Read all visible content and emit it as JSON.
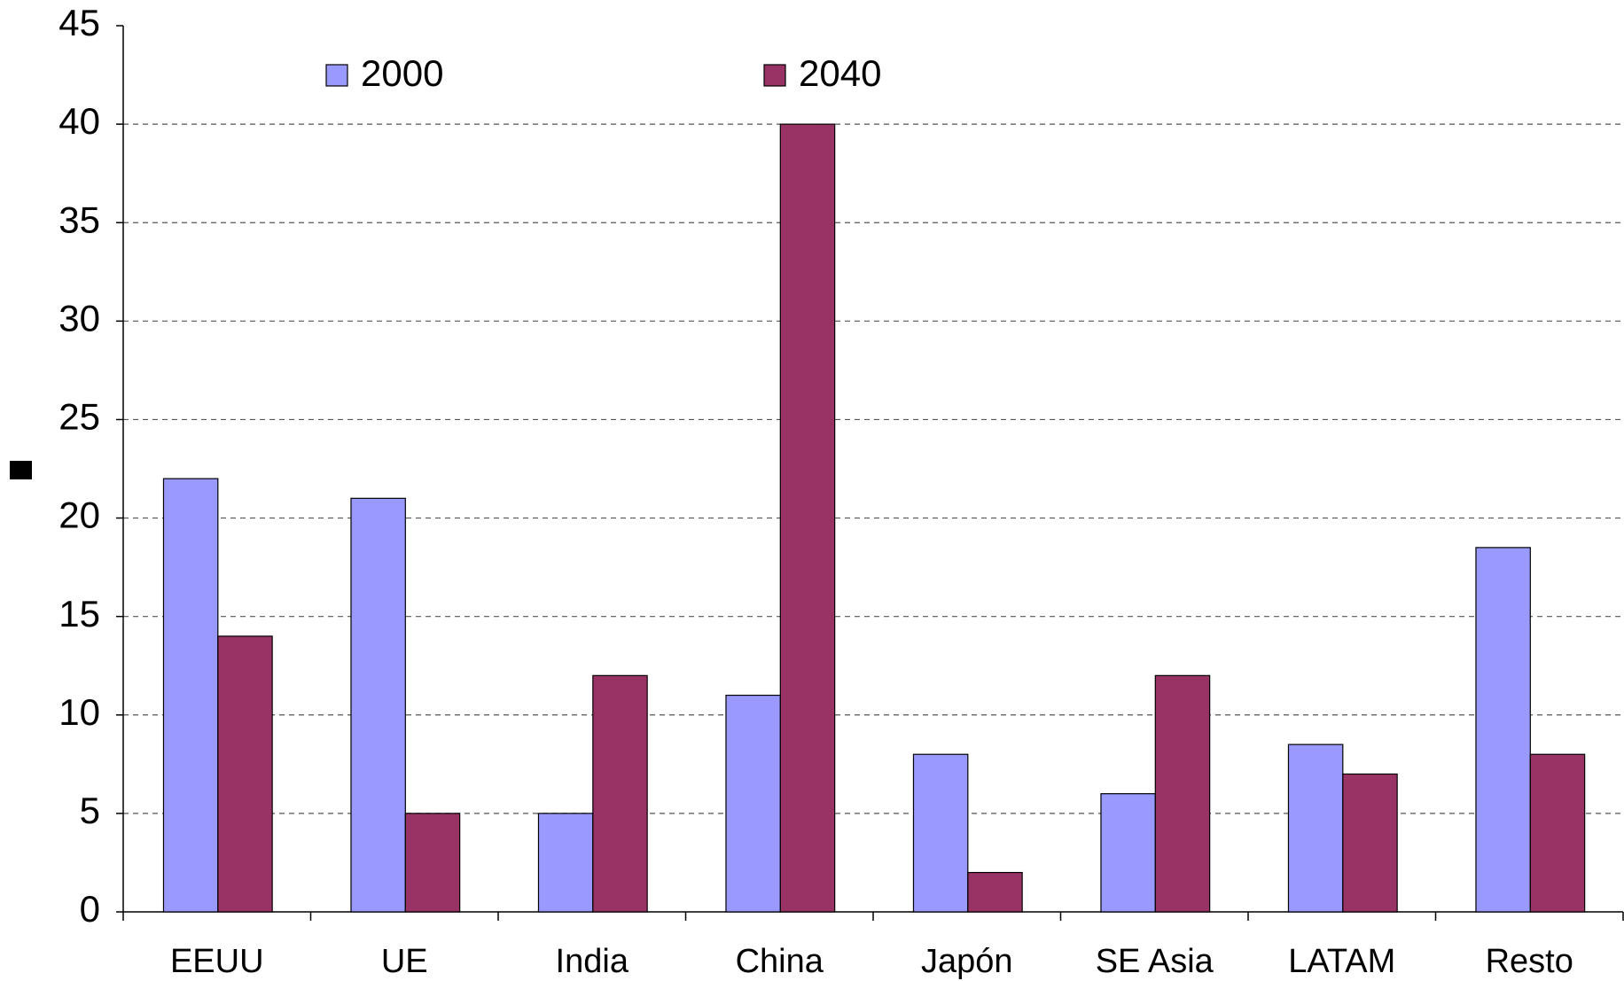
{
  "chart_data": {
    "type": "bar",
    "categories": [
      "EEUU",
      "UE",
      "India",
      "China",
      "Japón",
      "SE Asia",
      "LATAM",
      "Resto"
    ],
    "series": [
      {
        "name": "2000",
        "color": "#9999ff",
        "values": [
          22,
          21,
          5,
          11,
          8,
          6,
          8.5,
          18.5
        ]
      },
      {
        "name": "2040",
        "color": "#993366",
        "values": [
          14,
          5,
          12,
          40,
          2,
          12,
          7,
          8
        ]
      }
    ],
    "ylim": [
      0,
      45
    ],
    "yticks": [
      0,
      5,
      10,
      15,
      20,
      25,
      30,
      35,
      40,
      45
    ],
    "grid": true
  }
}
